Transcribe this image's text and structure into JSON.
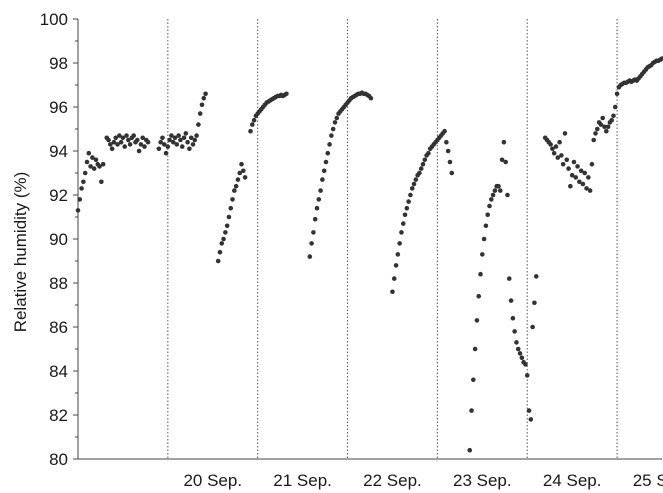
{
  "chart_data": {
    "type": "scatter",
    "title": "",
    "xlabel": "",
    "ylabel": "Relative humidity (%)",
    "ylim": [
      80,
      100
    ],
    "yticks": [
      80,
      82,
      84,
      86,
      88,
      90,
      92,
      94,
      96,
      98,
      100
    ],
    "xlim": [
      0,
      6.5
    ],
    "x_unit": "days from 19 Sep. 00:00",
    "day_boundaries": [
      1,
      2,
      3,
      4,
      5,
      6
    ],
    "xtick_labels": [
      "20 Sep.",
      "21 Sep.",
      "22 Sep.",
      "23 Sep.",
      "24 Sep.",
      "25 Sep."
    ],
    "grid": "vertical dotted lines at day boundaries",
    "marker_color": "#333333",
    "series": [
      {
        "points": [
          [
            0.0,
            91.3
          ],
          [
            0.02,
            91.8
          ],
          [
            0.04,
            92.3
          ],
          [
            0.06,
            92.6
          ],
          [
            0.08,
            93.0
          ],
          [
            0.1,
            93.5
          ],
          [
            0.12,
            93.9
          ],
          [
            0.14,
            93.3
          ],
          [
            0.16,
            93.7
          ],
          [
            0.18,
            93.2
          ],
          [
            0.2,
            93.6
          ],
          [
            0.22,
            93.4
          ],
          [
            0.24,
            93.3
          ],
          [
            0.26,
            92.6
          ],
          [
            0.28,
            93.4
          ],
          [
            0.32,
            94.6
          ],
          [
            0.34,
            94.5
          ],
          [
            0.36,
            94.3
          ],
          [
            0.38,
            94.1
          ],
          [
            0.4,
            94.4
          ],
          [
            0.42,
            94.6
          ],
          [
            0.44,
            94.3
          ],
          [
            0.46,
            94.7
          ],
          [
            0.48,
            94.4
          ],
          [
            0.5,
            94.6
          ],
          [
            0.52,
            94.2
          ],
          [
            0.54,
            94.7
          ],
          [
            0.56,
            94.5
          ],
          [
            0.58,
            94.3
          ],
          [
            0.6,
            94.6
          ],
          [
            0.62,
            94.7
          ],
          [
            0.64,
            94.4
          ],
          [
            0.66,
            94.5
          ],
          [
            0.68,
            94.0
          ],
          [
            0.7,
            94.3
          ],
          [
            0.72,
            94.6
          ],
          [
            0.74,
            94.2
          ],
          [
            0.76,
            94.5
          ],
          [
            0.78,
            94.4
          ],
          [
            0.9,
            94.1
          ],
          [
            0.92,
            94.4
          ],
          [
            0.94,
            94.6
          ],
          [
            0.96,
            94.3
          ],
          [
            0.98,
            93.9
          ],
          [
            1.0,
            94.2
          ],
          [
            1.02,
            94.5
          ],
          [
            1.04,
            94.7
          ],
          [
            1.06,
            94.4
          ],
          [
            1.08,
            94.6
          ],
          [
            1.1,
            94.3
          ],
          [
            1.12,
            94.7
          ],
          [
            1.14,
            94.5
          ],
          [
            1.16,
            94.2
          ],
          [
            1.18,
            94.6
          ],
          [
            1.2,
            94.8
          ],
          [
            1.22,
            94.4
          ],
          [
            1.24,
            94.1
          ],
          [
            1.26,
            94.6
          ],
          [
            1.28,
            94.3
          ],
          [
            1.3,
            94.5
          ],
          [
            1.32,
            94.7
          ],
          [
            1.34,
            95.2
          ],
          [
            1.36,
            95.7
          ],
          [
            1.38,
            96.1
          ],
          [
            1.4,
            96.4
          ],
          [
            1.42,
            96.6
          ],
          [
            1.56,
            89.0
          ],
          [
            1.58,
            89.4
          ],
          [
            1.6,
            89.8
          ],
          [
            1.62,
            90.0
          ],
          [
            1.64,
            90.3
          ],
          [
            1.66,
            90.6
          ],
          [
            1.68,
            91.0
          ],
          [
            1.7,
            91.4
          ],
          [
            1.72,
            91.8
          ],
          [
            1.74,
            92.2
          ],
          [
            1.76,
            92.4
          ],
          [
            1.78,
            92.7
          ],
          [
            1.8,
            93.0
          ],
          [
            1.82,
            93.4
          ],
          [
            1.84,
            93.1
          ],
          [
            1.86,
            92.8
          ],
          [
            1.92,
            94.9
          ],
          [
            1.94,
            95.2
          ],
          [
            1.96,
            95.4
          ],
          [
            1.98,
            95.6
          ],
          [
            2.0,
            95.7
          ],
          [
            2.02,
            95.8
          ],
          [
            2.04,
            95.9
          ],
          [
            2.06,
            96.0
          ],
          [
            2.08,
            96.1
          ],
          [
            2.1,
            96.2
          ],
          [
            2.12,
            96.25
          ],
          [
            2.14,
            96.3
          ],
          [
            2.16,
            96.35
          ],
          [
            2.18,
            96.4
          ],
          [
            2.2,
            96.45
          ],
          [
            2.22,
            96.5
          ],
          [
            2.24,
            96.5
          ],
          [
            2.26,
            96.55
          ],
          [
            2.28,
            96.5
          ],
          [
            2.3,
            96.55
          ],
          [
            2.32,
            96.6
          ],
          [
            2.58,
            89.2
          ],
          [
            2.6,
            89.8
          ],
          [
            2.62,
            90.3
          ],
          [
            2.64,
            90.9
          ],
          [
            2.66,
            91.4
          ],
          [
            2.68,
            91.8
          ],
          [
            2.7,
            92.2
          ],
          [
            2.72,
            92.7
          ],
          [
            2.74,
            93.1
          ],
          [
            2.76,
            93.5
          ],
          [
            2.78,
            93.9
          ],
          [
            2.8,
            94.3
          ],
          [
            2.82,
            94.7
          ],
          [
            2.84,
            95.0
          ],
          [
            2.86,
            95.3
          ],
          [
            2.88,
            95.5
          ],
          [
            2.9,
            95.7
          ],
          [
            2.92,
            95.8
          ],
          [
            2.94,
            95.9
          ],
          [
            2.96,
            96.0
          ],
          [
            2.98,
            96.1
          ],
          [
            3.0,
            96.2
          ],
          [
            3.02,
            96.3
          ],
          [
            3.04,
            96.4
          ],
          [
            3.06,
            96.45
          ],
          [
            3.08,
            96.5
          ],
          [
            3.1,
            96.55
          ],
          [
            3.12,
            96.6
          ],
          [
            3.14,
            96.6
          ],
          [
            3.16,
            96.65
          ],
          [
            3.18,
            96.6
          ],
          [
            3.2,
            96.6
          ],
          [
            3.22,
            96.55
          ],
          [
            3.24,
            96.5
          ],
          [
            3.26,
            96.4
          ],
          [
            3.5,
            87.6
          ],
          [
            3.52,
            88.2
          ],
          [
            3.54,
            88.8
          ],
          [
            3.56,
            89.3
          ],
          [
            3.58,
            89.8
          ],
          [
            3.6,
            90.3
          ],
          [
            3.62,
            90.7
          ],
          [
            3.64,
            91.1
          ],
          [
            3.66,
            91.4
          ],
          [
            3.68,
            91.7
          ],
          [
            3.7,
            92.0
          ],
          [
            3.72,
            92.3
          ],
          [
            3.74,
            92.5
          ],
          [
            3.76,
            92.7
          ],
          [
            3.78,
            92.9
          ],
          [
            3.8,
            93.0
          ],
          [
            3.82,
            93.2
          ],
          [
            3.84,
            93.4
          ],
          [
            3.86,
            93.6
          ],
          [
            3.88,
            93.8
          ],
          [
            3.9,
            93.9
          ],
          [
            3.92,
            94.1
          ],
          [
            3.94,
            94.2
          ],
          [
            3.96,
            94.3
          ],
          [
            3.98,
            94.4
          ],
          [
            4.0,
            94.5
          ],
          [
            4.02,
            94.6
          ],
          [
            4.04,
            94.7
          ],
          [
            4.06,
            94.8
          ],
          [
            4.08,
            94.9
          ],
          [
            4.1,
            94.4
          ],
          [
            4.12,
            94.0
          ],
          [
            4.14,
            93.5
          ],
          [
            4.16,
            93.0
          ],
          [
            4.36,
            80.4
          ],
          [
            4.38,
            82.2
          ],
          [
            4.4,
            83.6
          ],
          [
            4.42,
            85.0
          ],
          [
            4.44,
            86.3
          ],
          [
            4.46,
            87.4
          ],
          [
            4.48,
            88.4
          ],
          [
            4.5,
            89.3
          ],
          [
            4.52,
            90.0
          ],
          [
            4.54,
            90.6
          ],
          [
            4.56,
            91.1
          ],
          [
            4.58,
            91.5
          ],
          [
            4.6,
            91.8
          ],
          [
            4.62,
            92.0
          ],
          [
            4.64,
            92.2
          ],
          [
            4.66,
            92.4
          ],
          [
            4.68,
            92.4
          ],
          [
            4.7,
            92.2
          ],
          [
            4.72,
            93.6
          ],
          [
            4.74,
            94.4
          ],
          [
            4.76,
            93.5
          ],
          [
            4.78,
            92.0
          ],
          [
            4.8,
            88.2
          ],
          [
            4.82,
            87.2
          ],
          [
            4.84,
            86.4
          ],
          [
            4.86,
            85.8
          ],
          [
            4.88,
            85.3
          ],
          [
            4.9,
            85.0
          ],
          [
            4.92,
            84.8
          ],
          [
            4.94,
            84.6
          ],
          [
            4.96,
            84.4
          ],
          [
            4.98,
            84.3
          ],
          [
            5.0,
            83.8
          ],
          [
            5.02,
            82.2
          ],
          [
            5.04,
            81.8
          ],
          [
            5.06,
            86.0
          ],
          [
            5.08,
            87.1
          ],
          [
            5.1,
            88.3
          ],
          [
            5.2,
            94.6
          ],
          [
            5.22,
            94.5
          ],
          [
            5.24,
            94.4
          ],
          [
            5.26,
            94.3
          ],
          [
            5.28,
            94.1
          ],
          [
            5.3,
            93.9
          ],
          [
            5.32,
            94.2
          ],
          [
            5.34,
            93.7
          ],
          [
            5.36,
            94.4
          ],
          [
            5.38,
            93.8
          ],
          [
            5.4,
            93.4
          ],
          [
            5.42,
            94.8
          ],
          [
            5.44,
            93.6
          ],
          [
            5.46,
            93.2
          ],
          [
            5.48,
            92.4
          ],
          [
            5.5,
            92.9
          ],
          [
            5.52,
            93.5
          ],
          [
            5.54,
            92.8
          ],
          [
            5.56,
            93.3
          ],
          [
            5.58,
            92.6
          ],
          [
            5.6,
            93.1
          ],
          [
            5.62,
            92.5
          ],
          [
            5.64,
            93.0
          ],
          [
            5.66,
            92.3
          ],
          [
            5.68,
            92.8
          ],
          [
            5.7,
            92.2
          ],
          [
            5.72,
            93.4
          ],
          [
            5.74,
            94.5
          ],
          [
            5.76,
            94.8
          ],
          [
            5.78,
            95.0
          ],
          [
            5.8,
            95.3
          ],
          [
            5.82,
            95.2
          ],
          [
            5.84,
            95.5
          ],
          [
            5.86,
            95.1
          ],
          [
            5.88,
            94.9
          ],
          [
            5.9,
            95.1
          ],
          [
            5.92,
            95.3
          ],
          [
            5.94,
            95.4
          ],
          [
            5.96,
            95.6
          ],
          [
            5.98,
            96.0
          ],
          [
            6.0,
            96.6
          ],
          [
            6.02,
            96.9
          ],
          [
            6.04,
            97.0
          ],
          [
            6.06,
            97.05
          ],
          [
            6.08,
            97.1
          ],
          [
            6.1,
            97.1
          ],
          [
            6.12,
            97.15
          ],
          [
            6.14,
            97.2
          ],
          [
            6.16,
            97.15
          ],
          [
            6.18,
            97.2
          ],
          [
            6.2,
            97.25
          ],
          [
            6.22,
            97.2
          ],
          [
            6.24,
            97.3
          ],
          [
            6.26,
            97.4
          ],
          [
            6.28,
            97.5
          ],
          [
            6.3,
            97.6
          ],
          [
            6.32,
            97.7
          ],
          [
            6.34,
            97.8
          ],
          [
            6.36,
            97.85
          ],
          [
            6.38,
            97.9
          ],
          [
            6.4,
            98.0
          ],
          [
            6.42,
            98.05
          ],
          [
            6.44,
            98.1
          ],
          [
            6.46,
            98.1
          ],
          [
            6.48,
            98.15
          ],
          [
            6.5,
            98.2
          ]
        ]
      }
    ]
  }
}
